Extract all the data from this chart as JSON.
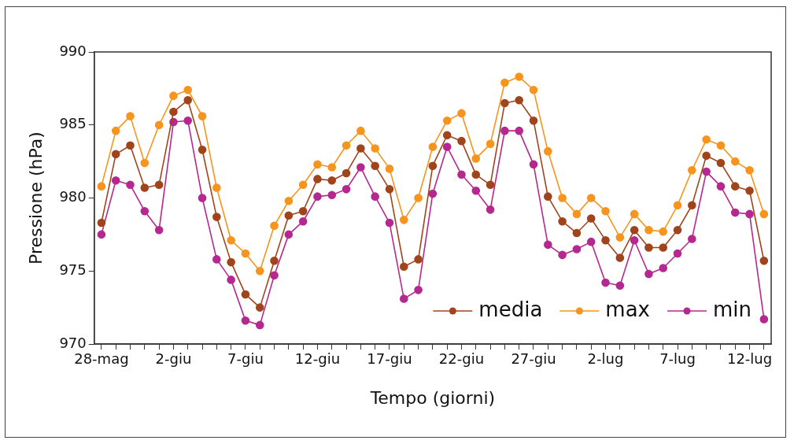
{
  "chart_data": {
    "type": "line",
    "xlabel": "Tempo (giorni)",
    "ylabel": "Pressione (hPa)",
    "categories": [
      "28-mag",
      null,
      null,
      null,
      null,
      "2-giu",
      null,
      null,
      null,
      null,
      "7-giu",
      null,
      null,
      null,
      null,
      "12-giu",
      null,
      null,
      null,
      null,
      "17-giu",
      null,
      null,
      null,
      null,
      "22-giu",
      null,
      null,
      null,
      null,
      "27-giu",
      null,
      null,
      null,
      null,
      "2-lug",
      null,
      null,
      null,
      null,
      "7-lug",
      null,
      null,
      null,
      null,
      "12-lug",
      null
    ],
    "series": [
      {
        "name": "media",
        "color": "#a0441c",
        "values": [
          978.3,
          983.0,
          983.6,
          980.7,
          980.9,
          985.9,
          986.7,
          983.3,
          978.7,
          975.6,
          973.4,
          972.5,
          975.7,
          978.8,
          979.1,
          981.3,
          981.2,
          981.7,
          983.4,
          982.2,
          980.6,
          975.3,
          975.8,
          982.2,
          984.3,
          983.9,
          981.6,
          980.9,
          986.5,
          986.7,
          985.3,
          980.1,
          978.4,
          977.6,
          978.6,
          977.1,
          975.9,
          977.8,
          976.6,
          976.6,
          977.8,
          979.5,
          982.9,
          982.4,
          980.8,
          980.5,
          975.7
        ]
      },
      {
        "name": "max",
        "color": "#f7941d",
        "values": [
          980.8,
          984.6,
          985.6,
          982.4,
          985.0,
          987.0,
          987.4,
          985.6,
          980.7,
          977.1,
          976.2,
          975.0,
          978.1,
          979.8,
          980.9,
          982.3,
          982.1,
          983.6,
          984.6,
          983.4,
          982.0,
          978.5,
          980.0,
          983.5,
          985.3,
          985.8,
          982.7,
          983.7,
          987.9,
          988.3,
          987.4,
          983.2,
          980.0,
          978.9,
          980.0,
          979.1,
          977.3,
          978.9,
          977.8,
          977.7,
          979.5,
          981.9,
          984.0,
          983.6,
          982.5,
          981.9,
          978.9
        ]
      },
      {
        "name": "min",
        "color": "#b5288f",
        "values": [
          977.5,
          981.2,
          980.9,
          979.1,
          977.8,
          985.2,
          985.3,
          980.0,
          975.8,
          974.4,
          971.6,
          971.3,
          974.7,
          977.5,
          978.4,
          980.1,
          980.2,
          980.6,
          982.1,
          980.1,
          978.3,
          973.1,
          973.7,
          980.3,
          983.5,
          981.6,
          980.5,
          979.2,
          984.6,
          984.6,
          982.3,
          976.8,
          976.1,
          976.5,
          977.0,
          974.2,
          974.0,
          977.1,
          974.8,
          975.2,
          976.2,
          977.2,
          981.8,
          980.8,
          979.0,
          978.9,
          971.7
        ]
      }
    ],
    "ylim": [
      970,
      990
    ],
    "yticks": [
      970,
      975,
      980,
      985,
      990
    ],
    "grid": false,
    "legend": "bottom right",
    "marker": "circle",
    "line_style": "solid"
  }
}
